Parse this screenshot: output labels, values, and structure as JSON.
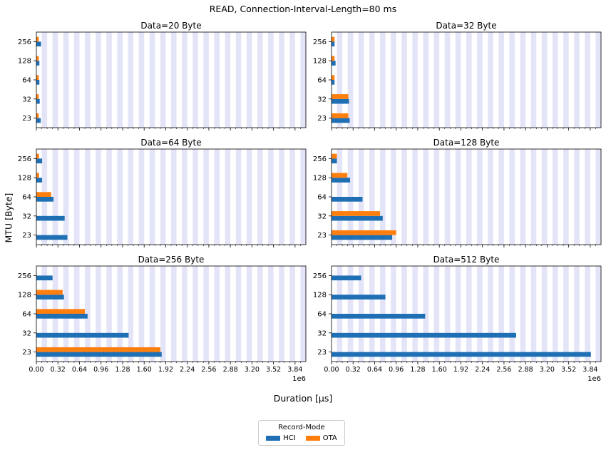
{
  "figure": {
    "suptitle": "READ, Connection-Interval-Length=80 ms",
    "ylabel": "MTU [Byte]",
    "xlabel": "Duration [µs]",
    "legend": {
      "title": "Record-Mode",
      "items": [
        {
          "name": "HCI",
          "color": "#1f6fb5"
        },
        {
          "name": "OTA",
          "color": "#ff7f0e"
        }
      ]
    }
  },
  "chart_data": [
    {
      "type": "bar",
      "title": "Data=20 Byte",
      "orientation": "horizontal",
      "categories": [
        "23",
        "32",
        "64",
        "128",
        "256"
      ],
      "series": [
        {
          "name": "HCI",
          "values": [
            65000,
            50000,
            45000,
            45000,
            70000
          ]
        },
        {
          "name": "OTA",
          "values": [
            35000,
            35000,
            35000,
            35000,
            35000
          ]
        }
      ],
      "xlim": [
        0,
        4000000
      ],
      "x_offset_label": "",
      "show_xticklabels": false
    },
    {
      "type": "bar",
      "title": "Data=32 Byte",
      "orientation": "horizontal",
      "categories": [
        "23",
        "32",
        "64",
        "128",
        "256"
      ],
      "series": [
        {
          "name": "HCI",
          "values": [
            270000,
            260000,
            45000,
            60000,
            45000
          ]
        },
        {
          "name": "OTA",
          "values": [
            250000,
            250000,
            45000,
            45000,
            45000
          ]
        }
      ],
      "xlim": [
        0,
        4000000
      ],
      "x_offset_label": "",
      "show_xticklabels": false
    },
    {
      "type": "bar",
      "title": "Data=64 Byte",
      "orientation": "horizontal",
      "categories": [
        "23",
        "32",
        "64",
        "128",
        "256"
      ],
      "series": [
        {
          "name": "HCI",
          "values": [
            460000,
            420000,
            255000,
            85000,
            85000
          ]
        },
        {
          "name": "OTA",
          "values": [
            0,
            0,
            220000,
            40000,
            40000
          ]
        }
      ],
      "xlim": [
        0,
        4000000
      ],
      "x_offset_label": "",
      "show_xticklabels": false
    },
    {
      "type": "bar",
      "title": "Data=128 Byte",
      "orientation": "horizontal",
      "categories": [
        "23",
        "32",
        "64",
        "128",
        "256"
      ],
      "series": [
        {
          "name": "HCI",
          "values": [
            900000,
            760000,
            460000,
            275000,
            80000
          ]
        },
        {
          "name": "OTA",
          "values": [
            960000,
            720000,
            0,
            235000,
            80000
          ]
        }
      ],
      "xlim": [
        0,
        4000000
      ],
      "x_offset_label": "",
      "show_xticklabels": false
    },
    {
      "type": "bar",
      "title": "Data=256 Byte",
      "orientation": "horizontal",
      "categories": [
        "23",
        "32",
        "64",
        "128",
        "256"
      ],
      "series": [
        {
          "name": "HCI",
          "values": [
            1860000,
            1370000,
            760000,
            410000,
            240000
          ]
        },
        {
          "name": "OTA",
          "values": [
            1840000,
            0,
            720000,
            390000,
            0
          ]
        }
      ],
      "xlim": [
        0,
        4000000
      ],
      "x_offset_label": "1e6",
      "show_xticklabels": true
    },
    {
      "type": "bar",
      "title": "Data=512 Byte",
      "orientation": "horizontal",
      "categories": [
        "23",
        "32",
        "64",
        "128",
        "256"
      ],
      "series": [
        {
          "name": "HCI",
          "values": [
            3850000,
            2740000,
            1390000,
            800000,
            440000
          ]
        },
        {
          "name": "OTA",
          "values": [
            0,
            0,
            0,
            0,
            0
          ]
        }
      ],
      "xlim": [
        0,
        4000000
      ],
      "x_offset_label": "1e6",
      "show_xticklabels": true
    }
  ],
  "x_ticks": {
    "values": [
      0,
      320000,
      640000,
      960000,
      1280000,
      1600000,
      1920000,
      2240000,
      2560000,
      2880000,
      3200000,
      3520000,
      3840000
    ],
    "labels": [
      "0.00",
      "0.32",
      "0.64",
      "0.96",
      "1.28",
      "1.60",
      "1.92",
      "2.24",
      "2.56",
      "2.88",
      "3.20",
      "3.52",
      "3.84"
    ]
  },
  "colors": {
    "band": "#e4e4f8",
    "axes": "#000000"
  }
}
